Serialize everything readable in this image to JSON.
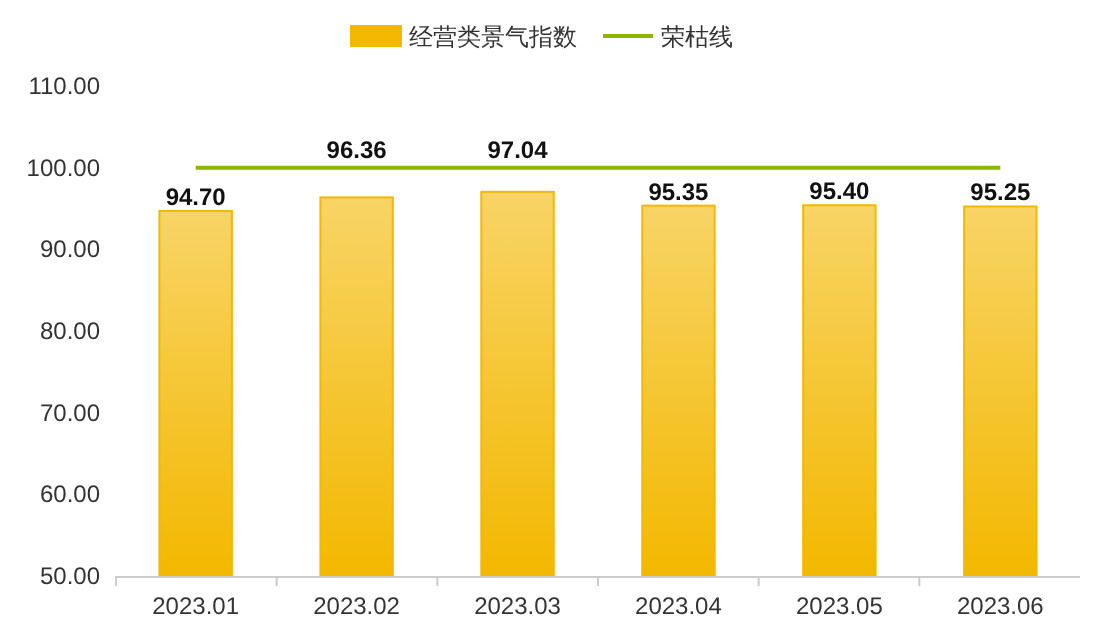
{
  "chart_data": {
    "type": "bar",
    "categories": [
      "2023.01",
      "2023.02",
      "2023.03",
      "2023.04",
      "2023.05",
      "2023.06"
    ],
    "series": [
      {
        "name": "经营类景气指数",
        "color": "#f3b800",
        "values": [
          94.7,
          96.36,
          97.04,
          95.35,
          95.4,
          95.25
        ],
        "value_labels": [
          "94.70",
          "96.36",
          "97.04",
          "95.35",
          "95.40",
          "95.25"
        ]
      },
      {
        "name": "荣枯线",
        "type": "line",
        "color": "#8db600",
        "values": [
          100,
          100,
          100,
          100,
          100,
          100
        ]
      }
    ],
    "ylim": [
      50,
      110
    ],
    "yticks": [
      {
        "value": 50,
        "label": "50.00"
      },
      {
        "value": 60,
        "label": "60.00"
      },
      {
        "value": 70,
        "label": "70.00"
      },
      {
        "value": 80,
        "label": "80.00"
      },
      {
        "value": 90,
        "label": "90.00"
      },
      {
        "value": 100,
        "label": "100.00"
      },
      {
        "value": 110,
        "label": "110.00"
      }
    ],
    "grid": false,
    "legend": "top"
  }
}
